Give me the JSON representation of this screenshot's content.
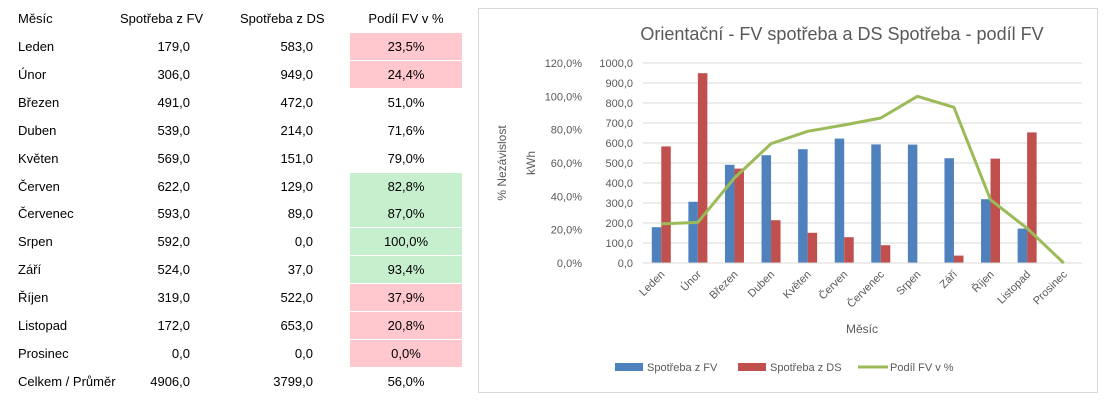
{
  "table": {
    "headers": [
      "Měsíc",
      "Spotřeba z FV",
      "Spotřeba z DS",
      "Podíl FV v  %"
    ],
    "rows": [
      {
        "month": "Leden",
        "fv": "179,0",
        "ds": "583,0",
        "pct": "23,5%",
        "hl": "red"
      },
      {
        "month": "Únor",
        "fv": "306,0",
        "ds": "949,0",
        "pct": "24,4%",
        "hl": "red"
      },
      {
        "month": "Březen",
        "fv": "491,0",
        "ds": "472,0",
        "pct": "51,0%",
        "hl": ""
      },
      {
        "month": "Duben",
        "fv": "539,0",
        "ds": "214,0",
        "pct": "71,6%",
        "hl": ""
      },
      {
        "month": "Květen",
        "fv": "569,0",
        "ds": "151,0",
        "pct": "79,0%",
        "hl": ""
      },
      {
        "month": "Červen",
        "fv": "622,0",
        "ds": "129,0",
        "pct": "82,8%",
        "hl": "green"
      },
      {
        "month": "Červenec",
        "fv": "593,0",
        "ds": "89,0",
        "pct": "87,0%",
        "hl": "green"
      },
      {
        "month": "Srpen",
        "fv": "592,0",
        "ds": "0,0",
        "pct": "100,0%",
        "hl": "green"
      },
      {
        "month": "Září",
        "fv": "524,0",
        "ds": "37,0",
        "pct": "93,4%",
        "hl": "green"
      },
      {
        "month": "Říjen",
        "fv": "319,0",
        "ds": "522,0",
        "pct": "37,9%",
        "hl": "red"
      },
      {
        "month": "Listopad",
        "fv": "172,0",
        "ds": "653,0",
        "pct": "20,8%",
        "hl": "red"
      },
      {
        "month": "Prosinec",
        "fv": "0,0",
        "ds": "0,0",
        "pct": "0,0%",
        "hl": "red"
      }
    ],
    "total": {
      "month": "Celkem / Průměr",
      "fv": "4906,0",
      "ds": "3799,0",
      "pct": "56,0%"
    },
    "colors": {
      "red": "#ffc7ce",
      "green": "#c6efce"
    }
  },
  "chart_data": {
    "type": "bar+line",
    "title": "Orientační - FV spotřeba a DS Spotřeba - podíl FV",
    "xlabel": "Měsíc",
    "ylabel": "kWh",
    "ylabel2": "% Nezávislost",
    "categories": [
      "Leden",
      "Únor",
      "Březen",
      "Duben",
      "Květen",
      "Červen",
      "Červenec",
      "Srpen",
      "Září",
      "Říjen",
      "Listopad",
      "Prosinec"
    ],
    "ylim": [
      0,
      1000
    ],
    "ylim2": [
      0,
      120
    ],
    "yticks": [
      "0,0",
      "100,0",
      "200,0",
      "300,0",
      "400,0",
      "500,0",
      "600,0",
      "700,0",
      "800,0",
      "900,0",
      "1000,0"
    ],
    "yticks2": [
      "0,0%",
      "20,0%",
      "40,0%",
      "60,0%",
      "80,0%",
      "100,0%",
      "120,0%"
    ],
    "series": [
      {
        "name": "Spotřeba z FV",
        "type": "bar",
        "color": "#4f81bd",
        "values": [
          179,
          306,
          491,
          539,
          569,
          622,
          593,
          592,
          524,
          319,
          172,
          0
        ]
      },
      {
        "name": "Spotřeba z DS",
        "type": "bar",
        "color": "#c0504d",
        "values": [
          583,
          949,
          472,
          214,
          151,
          129,
          89,
          0,
          37,
          522,
          653,
          0
        ]
      },
      {
        "name": "Podíl FV v  %",
        "type": "line",
        "color": "#9bbb59",
        "values": [
          23.5,
          24.4,
          51.0,
          71.6,
          79.0,
          82.8,
          87.0,
          100.0,
          93.4,
          37.9,
          20.8,
          0.0
        ]
      }
    ],
    "grid": true,
    "legend": "bottom"
  }
}
